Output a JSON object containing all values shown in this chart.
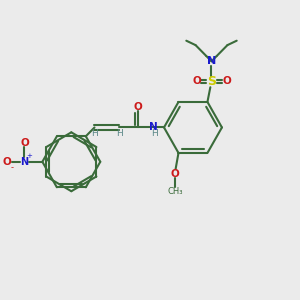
{
  "bg_color": "#ebebeb",
  "bond_color": "#3a6b3a",
  "N_color": "#1a1acc",
  "O_color": "#cc1a1a",
  "S_color": "#cccc00",
  "H_color": "#5a8888",
  "figsize": [
    3.0,
    3.0
  ],
  "dpi": 100,
  "xlim": [
    0,
    10
  ],
  "ylim": [
    0,
    10
  ]
}
